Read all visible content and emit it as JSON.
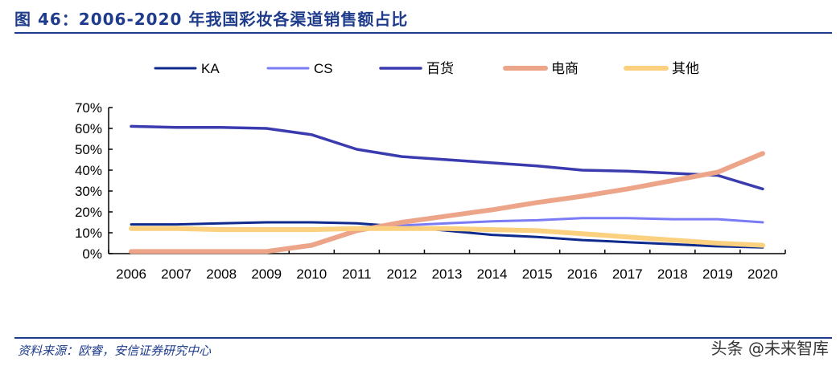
{
  "title": "图 46：2006-2020 年我国彩妆各渠道销售额占比",
  "source": "资料来源：欧睿，安信证券研究中心",
  "watermark": "头条 @未来智库",
  "chart_data": {
    "type": "line",
    "categories": [
      "2006",
      "2007",
      "2008",
      "2009",
      "2010",
      "2011",
      "2012",
      "2013",
      "2014",
      "2015",
      "2016",
      "2017",
      "2018",
      "2019",
      "2020"
    ],
    "yticks": [
      "0%",
      "10%",
      "20%",
      "30%",
      "40%",
      "50%",
      "60%",
      "70%"
    ],
    "ylim": [
      0,
      70
    ],
    "legend": "top",
    "grid": false,
    "series": [
      {
        "name": "KA",
        "color": "#0d2a8c",
        "values": [
          14,
          14,
          14.5,
          15,
          15,
          14.5,
          13,
          11,
          9,
          8,
          6.5,
          5.5,
          4.5,
          3.5,
          3
        ]
      },
      {
        "name": "CS",
        "color": "#7b7bf5",
        "values": [
          12.5,
          12.5,
          12,
          12,
          12,
          12.5,
          13.5,
          14.5,
          15.5,
          16,
          17,
          17,
          16.5,
          16.5,
          15
        ]
      },
      {
        "name": "百货",
        "color": "#3b3bb0",
        "values": [
          61,
          60.5,
          60.5,
          60,
          57,
          50,
          46.5,
          45,
          43.5,
          42,
          40,
          39.5,
          38.5,
          37.5,
          31
        ]
      },
      {
        "name": "电商",
        "color": "#eda58a",
        "values": [
          1,
          1,
          1,
          1,
          4,
          11,
          15,
          18,
          21,
          24.5,
          27.5,
          31,
          35,
          39,
          48
        ]
      },
      {
        "name": "其他",
        "color": "#fbd07f",
        "values": [
          12,
          12,
          11.5,
          11.5,
          11.5,
          12,
          12,
          12,
          11.5,
          11,
          9.5,
          8,
          6.5,
          5,
          4
        ]
      }
    ]
  }
}
